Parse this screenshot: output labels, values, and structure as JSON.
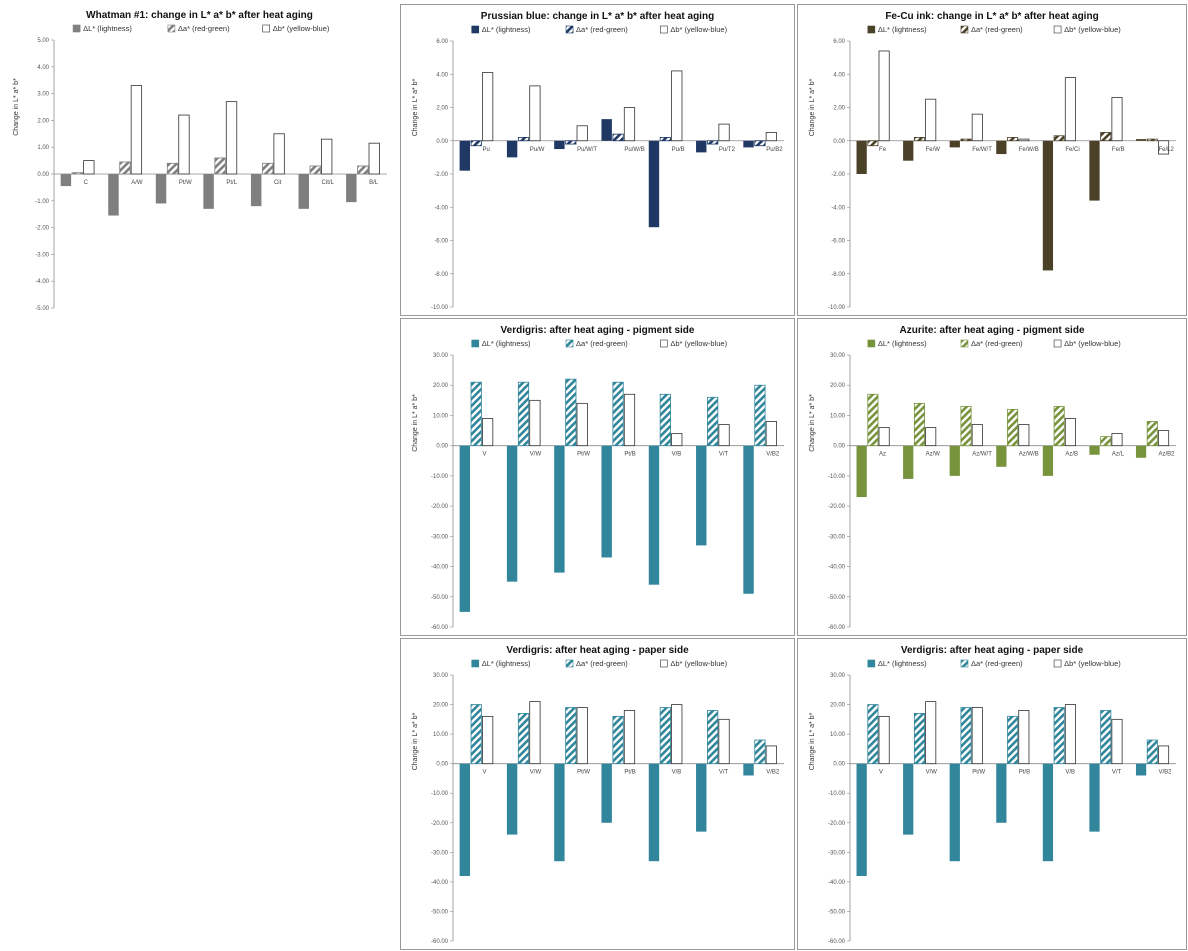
{
  "colors": {
    "whitman": "#7f7f7f",
    "prussian": "#1f3864",
    "fecu": "#4a4128",
    "verdigris": "#31869b",
    "azurite": "#77933c"
  },
  "chart_data": [
    {
      "type": "bar",
      "title": "Whatman #1: change in L* a* b* after heat aging",
      "ylabel": "Change in L* a* b*",
      "legend": [
        "ΔL* (lightness)",
        "Δa* (red-green)",
        "Δb* (yellow-blue)"
      ],
      "categories": [
        "C",
        "A/W",
        "Pt/W",
        "Pt/L",
        "Cit",
        "Cit/L",
        "B/L"
      ],
      "ylim": [
        -5,
        5
      ],
      "yticks": [
        5,
        4,
        3,
        2,
        1,
        0,
        -1,
        -2,
        -3,
        -4,
        -5
      ],
      "ytick_labels": [
        "5.00",
        "4.00",
        "3.00",
        "2.00",
        "1.00",
        "0.00",
        "-1.00",
        "-2.00",
        "-3.00",
        "-4.00",
        "-5.00"
      ],
      "color": "#7f7f7f",
      "series": [
        {
          "name": "ΔL* (lightness)",
          "values": [
            -0.45,
            -1.55,
            -1.1,
            -1.3,
            -1.2,
            -1.3,
            -1.05
          ]
        },
        {
          "name": "Δa* (red-green)",
          "values": [
            0.05,
            0.45,
            0.4,
            0.6,
            0.4,
            0.3,
            0.3
          ]
        },
        {
          "name": "Δb* (yellow-blue)",
          "values": [
            0.5,
            3.3,
            2.2,
            2.7,
            1.5,
            1.3,
            1.15
          ]
        }
      ]
    },
    {
      "type": "bar",
      "title": "Prussian blue: change in L* a* b* after heat aging",
      "ylabel": "Change in L* a* b*",
      "legend": [
        "ΔL* (lightness)",
        "Δa* (red-green)",
        "Δb* (yellow-blue)"
      ],
      "categories": [
        "Pu",
        "Pu/W",
        "Pu/W/T",
        "Pu/W/B",
        "Pu/B",
        "Pu/T2",
        "Pu/B2"
      ],
      "ylim": [
        -10,
        6
      ],
      "yticks": [
        6,
        4,
        2,
        0,
        -2,
        -4,
        -6,
        -8,
        -10
      ],
      "ytick_labels": [
        "6.00",
        "4.00",
        "2.00",
        "0.00",
        "-2.00",
        "-4.00",
        "-6.00",
        "-8.00",
        "-10.00"
      ],
      "color": "#1f3864",
      "series": [
        {
          "name": "ΔL* (lightness)",
          "values": [
            -1.8,
            -1.0,
            -0.5,
            1.3,
            -5.2,
            -0.7,
            -0.4
          ]
        },
        {
          "name": "Δa* (red-green)",
          "values": [
            -0.3,
            0.2,
            -0.2,
            0.4,
            0.2,
            -0.2,
            -0.3
          ]
        },
        {
          "name": "Δb* (yellow-blue)",
          "values": [
            4.1,
            3.3,
            0.9,
            2.0,
            4.2,
            1.0,
            0.5
          ]
        }
      ]
    },
    {
      "type": "bar",
      "title": "Fe-Cu ink: change in L* a* b* after heat aging",
      "ylabel": "Change in L* a* b*",
      "legend": [
        "ΔL* (lightness)",
        "Δa* (red-green)",
        "Δb* (yellow-blue)"
      ],
      "categories": [
        "Fe",
        "Fe/W",
        "Fe/W/T",
        "Fe/W/B",
        "Fe/Ci",
        "Fe/B",
        "Fe/L2"
      ],
      "ylim": [
        -10,
        6
      ],
      "yticks": [
        6,
        4,
        2,
        0,
        -2,
        -4,
        -6,
        -8,
        -10
      ],
      "ytick_labels": [
        "6.00",
        "4.00",
        "2.00",
        "0.00",
        "-2.00",
        "-4.00",
        "-6.00",
        "-8.00",
        "-10.00"
      ],
      "color": "#4a4128",
      "series": [
        {
          "name": "ΔL* (lightness)",
          "values": [
            -2.0,
            -1.2,
            -0.4,
            -0.8,
            -7.8,
            -3.6,
            0.1
          ]
        },
        {
          "name": "Δa* (red-green)",
          "values": [
            -0.3,
            0.2,
            0.1,
            0.2,
            0.3,
            0.5,
            0.1
          ]
        },
        {
          "name": "Δb* (yellow-blue)",
          "values": [
            5.4,
            2.5,
            1.6,
            0.1,
            3.8,
            2.6,
            -0.8
          ]
        }
      ]
    },
    {
      "type": "bar",
      "title": "Verdigris: after heat aging - pigment side",
      "ylabel": "Change in L* a* b*",
      "legend": [
        "ΔL* (lightness)",
        "Δa* (red-green)",
        "Δb* (yellow-blue)"
      ],
      "categories": [
        "V",
        "V/W",
        "Pt/W",
        "Pt/B",
        "V/B",
        "V/T",
        "V/B2"
      ],
      "ylim": [
        -60,
        30
      ],
      "yticks": [
        30,
        20,
        10,
        0,
        -10,
        -20,
        -30,
        -40,
        -50,
        -60
      ],
      "ytick_labels": [
        "30.00",
        "20.00",
        "10.00",
        "0.00",
        "-10.00",
        "-20.00",
        "-30.00",
        "-40.00",
        "-50.00",
        "-60.00"
      ],
      "color": "#31869b",
      "series": [
        {
          "name": "ΔL* (lightness)",
          "values": [
            -55,
            -45,
            -42,
            -37,
            -46,
            -33,
            -49
          ]
        },
        {
          "name": "Δa* (red-green)",
          "values": [
            21,
            21,
            22,
            21,
            17,
            16,
            20
          ]
        },
        {
          "name": "Δb* (yellow-blue)",
          "values": [
            9,
            15,
            14,
            17,
            4,
            7,
            8
          ]
        }
      ]
    },
    {
      "type": "bar",
      "title": "Azurite: after heat aging - pigment side",
      "ylabel": "Change in L* a* b*",
      "legend": [
        "ΔL* (lightness)",
        "Δa* (red-green)",
        "Δb* (yellow-blue)"
      ],
      "categories": [
        "Az",
        "Az/W",
        "Az/W/T",
        "Az/W/B",
        "Az/B",
        "Az/L",
        "Az/B2"
      ],
      "ylim": [
        -60,
        30
      ],
      "yticks": [
        30,
        20,
        10,
        0,
        -10,
        -20,
        -30,
        -40,
        -50,
        -60
      ],
      "ytick_labels": [
        "30.00",
        "20.00",
        "10.00",
        "0.00",
        "-10.00",
        "-20.00",
        "-30.00",
        "-40.00",
        "-50.00",
        "-60.00"
      ],
      "color": "#77933c",
      "series": [
        {
          "name": "ΔL* (lightness)",
          "values": [
            -17,
            -11,
            -10,
            -7,
            -10,
            -3,
            -4
          ]
        },
        {
          "name": "Δa* (red-green)",
          "values": [
            17,
            14,
            13,
            12,
            13,
            3,
            8
          ]
        },
        {
          "name": "Δb* (yellow-blue)",
          "values": [
            6,
            6,
            7,
            7,
            9,
            4,
            5
          ]
        }
      ]
    },
    {
      "type": "bar",
      "title": "Verdigris: after heat aging - paper side",
      "ylabel": "Change in L* a* b*",
      "legend": [
        "ΔL* (lightness)",
        "Δa* (red-green)",
        "Δb* (yellow-blue)"
      ],
      "categories": [
        "V",
        "V/W",
        "Pt/W",
        "Pt/B",
        "V/B",
        "V/T",
        "V/B2"
      ],
      "ylim": [
        -60,
        30
      ],
      "yticks": [
        30,
        20,
        10,
        0,
        -10,
        -20,
        -30,
        -40,
        -50,
        -60
      ],
      "ytick_labels": [
        "30.00",
        "20.00",
        "10.00",
        "0.00",
        "-10.00",
        "-20.00",
        "-30.00",
        "-40.00",
        "-50.00",
        "-60.00"
      ],
      "color": "#31869b",
      "series": [
        {
          "name": "ΔL* (lightness)",
          "values": [
            -38,
            -24,
            -33,
            -20,
            -33,
            -23,
            -4
          ]
        },
        {
          "name": "Δa* (red-green)",
          "values": [
            20,
            17,
            19,
            16,
            19,
            18,
            8
          ]
        },
        {
          "name": "Δb* (yellow-blue)",
          "values": [
            16,
            21,
            19,
            18,
            20,
            15,
            6
          ]
        }
      ]
    },
    {
      "type": "bar",
      "title": "Verdigris: after heat aging - paper side",
      "ylabel": "Change in L* a* b*",
      "legend": [
        "ΔL* (lightness)",
        "Δa* (red-green)",
        "Δb* (yellow-blue)"
      ],
      "categories": [
        "V",
        "V/W",
        "Pt/W",
        "Pt/B",
        "V/B",
        "V/T",
        "V/B2"
      ],
      "ylim": [
        -60,
        30
      ],
      "yticks": [
        30,
        20,
        10,
        0,
        -10,
        -20,
        -30,
        -40,
        -50,
        -60
      ],
      "ytick_labels": [
        "30.00",
        "20.00",
        "10.00",
        "0.00",
        "-10.00",
        "-20.00",
        "-30.00",
        "-40.00",
        "-50.00",
        "-60.00"
      ],
      "color": "#31869b",
      "series": [
        {
          "name": "ΔL* (lightness)",
          "values": [
            -38,
            -24,
            -33,
            -20,
            -33,
            -23,
            -4
          ]
        },
        {
          "name": "Δa* (red-green)",
          "values": [
            20,
            17,
            19,
            16,
            19,
            18,
            8
          ]
        },
        {
          "name": "Δb* (yellow-blue)",
          "values": [
            16,
            21,
            19,
            18,
            20,
            15,
            6
          ]
        }
      ]
    }
  ]
}
